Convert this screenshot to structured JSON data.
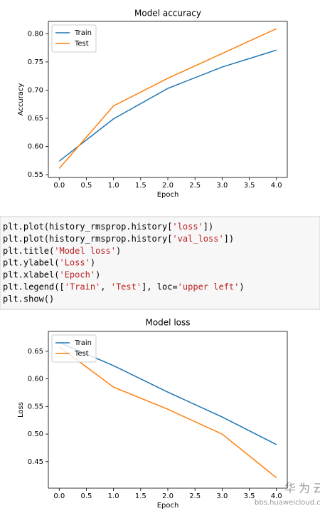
{
  "chart_data": [
    {
      "type": "line",
      "title": "Model accuracy",
      "xlabel": "Epoch",
      "ylabel": "Accuracy",
      "x": [
        0,
        1,
        2,
        3,
        4
      ],
      "series": [
        {
          "name": "Train",
          "color": "#1f77b4",
          "values": [
            0.574,
            0.649,
            0.703,
            0.741,
            0.771
          ]
        },
        {
          "name": "Test",
          "color": "#ff7f0e",
          "values": [
            0.561,
            0.672,
            0.721,
            0.765,
            0.809
          ]
        }
      ],
      "xlim": [
        -0.2,
        4.2
      ],
      "ylim": [
        0.545,
        0.822
      ],
      "xticks": [
        {
          "value": 0,
          "label": "0.0"
        },
        0.5,
        {
          "value": 1,
          "label": "1.0"
        },
        1.5,
        {
          "value": 2,
          "label": "2.0"
        },
        2.5,
        {
          "value": 3,
          "label": "3.0"
        },
        3.5,
        {
          "value": 4,
          "label": "4.0"
        }
      ],
      "yticks": [
        0.55,
        {
          "value": 0.6,
          "label": "0.60"
        },
        0.65,
        {
          "value": 0.7,
          "label": "0.70"
        },
        0.75,
        {
          "value": 0.8,
          "label": "0.80"
        }
      ],
      "legend": "upper left"
    },
    {
      "type": "line",
      "title": "Model loss",
      "xlabel": "Epoch",
      "ylabel": "Loss",
      "x": [
        0,
        1,
        2,
        3,
        4
      ],
      "series": [
        {
          "name": "Train",
          "color": "#1f77b4",
          "values": [
            0.666,
            0.624,
            0.576,
            0.531,
            0.481
          ]
        },
        {
          "name": "Test",
          "color": "#ff7f0e",
          "values": [
            0.658,
            0.585,
            0.545,
            0.5,
            0.421
          ]
        }
      ],
      "xlim": [
        -0.2,
        4.2
      ],
      "ylim": [
        0.402,
        0.686
      ],
      "xticks": [
        {
          "value": 0,
          "label": "0.0"
        },
        0.5,
        {
          "value": 1,
          "label": "1.0"
        },
        1.5,
        {
          "value": 2,
          "label": "2.0"
        },
        2.5,
        {
          "value": 3,
          "label": "3.0"
        },
        3.5,
        {
          "value": 4,
          "label": "4.0"
        }
      ],
      "yticks": [
        0.45,
        {
          "value": 0.5,
          "label": "0.50"
        },
        0.55,
        {
          "value": 0.6,
          "label": "0.60"
        },
        0.65
      ],
      "legend": "upper left"
    }
  ],
  "code": [
    "plt.plot(history_rmsprop.history['loss'])",
    "plt.plot(history_rmsprop.history['val_loss'])",
    "plt.title('Model loss')",
    "plt.ylabel('Loss')",
    "plt.xlabel('Epoch')",
    "plt.legend(['Train', 'Test'], loc='upper left')",
    "plt.show()"
  ],
  "watermark": {
    "title": "华为云社区",
    "url": "bbs.huaweicloud.com"
  }
}
